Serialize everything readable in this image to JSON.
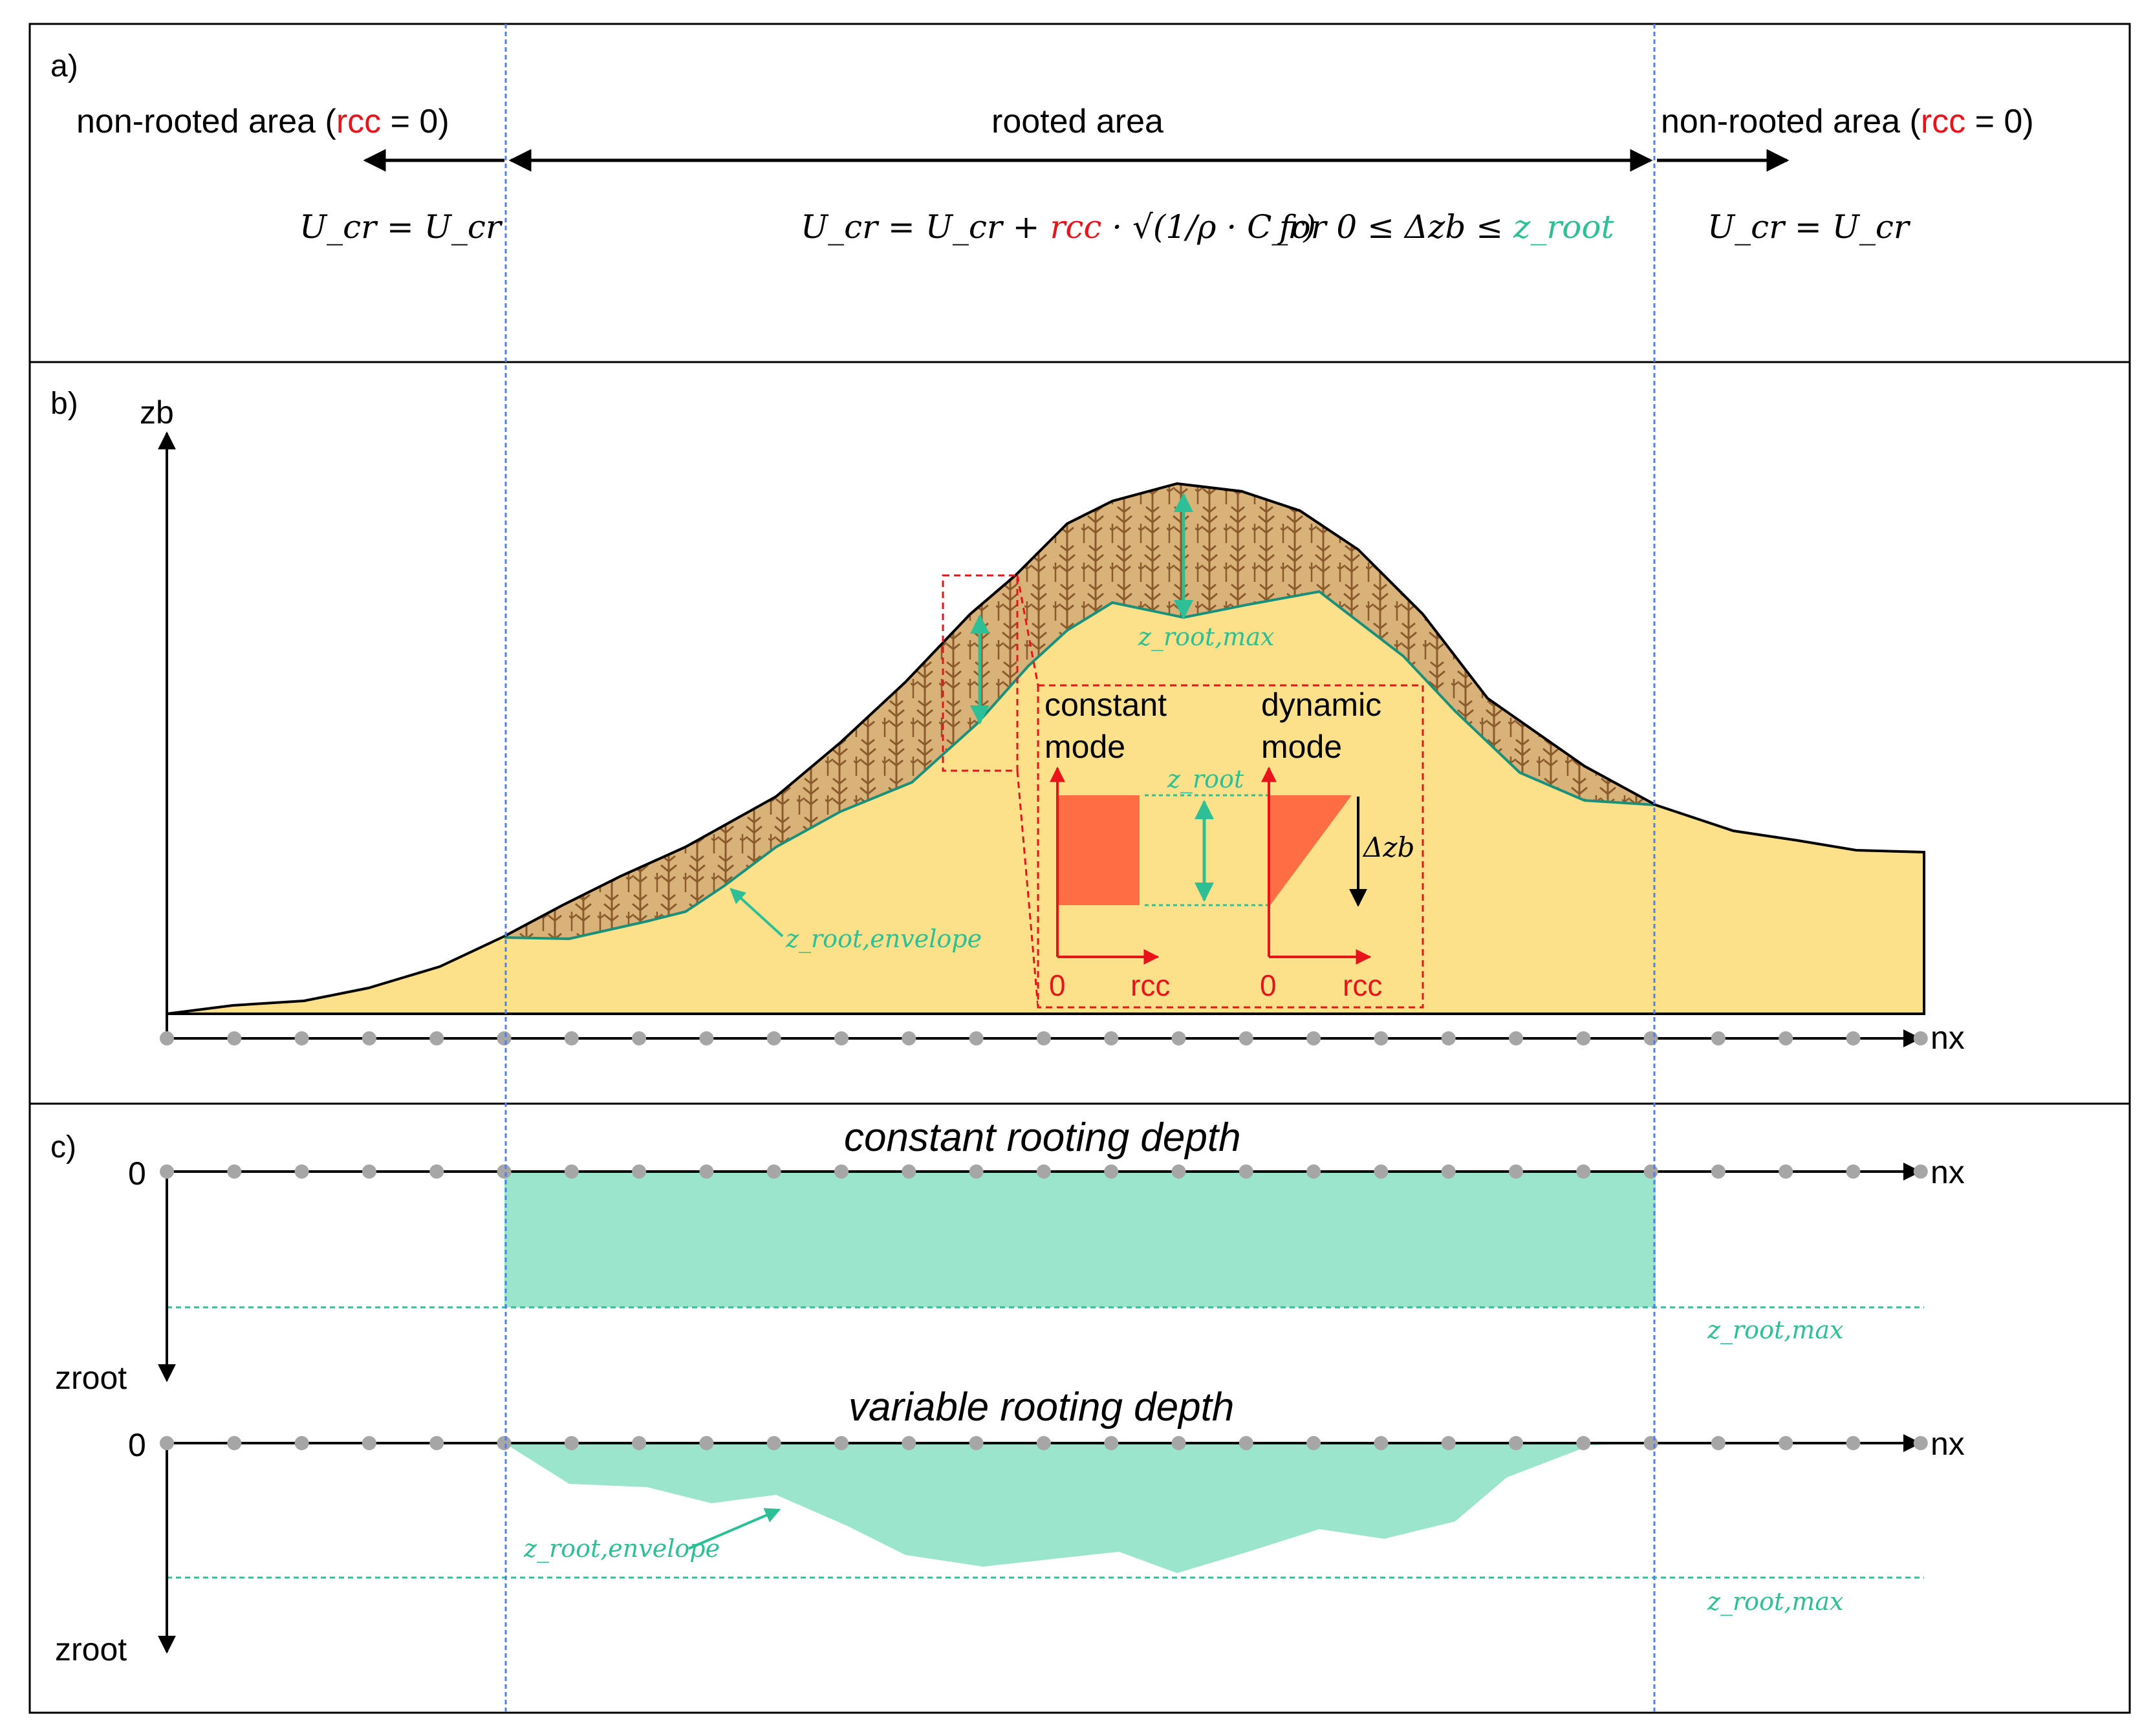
{
  "panels": {
    "a": {
      "label": "a)"
    },
    "b": {
      "label": "b)"
    },
    "c": {
      "label": "c)"
    }
  },
  "panel_a": {
    "left_area_prefix": "non-rooted area (",
    "left_area_rcc": "rcc",
    "left_area_suffix": " = 0)",
    "center_area": "rooted area",
    "right_area_prefix": "non-rooted area (",
    "right_area_rcc": "rcc",
    "right_area_suffix": " = 0)",
    "eq_left": "U_cr = U_cr",
    "eq_center_pre": "U_cr = U_cr + ",
    "eq_center_rcc": "rcc",
    "eq_center_post": " · √(1/ρ · C_r)",
    "eq_condition_pre": "for 0 ≤ Δzb ≤ ",
    "eq_condition_var": "z_root",
    "eq_right": "U_cr = U_cr"
  },
  "panel_b": {
    "y_axis_label": "zb",
    "x_axis_label": "nx",
    "label_root_max": "z_root,max",
    "label_root_envelope": "z_root,envelope",
    "inset": {
      "constant_mode_line1": "constant",
      "constant_mode_line2": "mode",
      "dynamic_mode_line1": "dynamic",
      "dynamic_mode_line2": "mode",
      "z_root_label": "z_root",
      "delta_zb_label": "Δzb",
      "origin_label_1": "0",
      "axis_label_1": "rcc",
      "origin_label_2": "0",
      "axis_label_2": "rcc"
    }
  },
  "panel_c": {
    "top_title": "constant rooting depth",
    "bottom_title": "variable rooting depth",
    "zero_label_top": "0",
    "zero_label_bottom": "0",
    "nx_label_top": "nx",
    "nx_label_bottom": "nx",
    "zroot_label_top": "zroot",
    "zroot_label_bottom": "zroot",
    "root_max_label_top": "z_root,max",
    "root_max_label_bottom": "z_root,max",
    "envelope_label": "z_root,envelope"
  },
  "colors": {
    "sand": "#fce08a",
    "roots": "#9c6a3a",
    "teal": "#2dbf95",
    "teal_fill": "#9ae5cc",
    "red": "#e8141a",
    "orange": "#ff6e45",
    "blue_dashed": "#4f7ff0",
    "grid_node": "#a6a6a6"
  }
}
